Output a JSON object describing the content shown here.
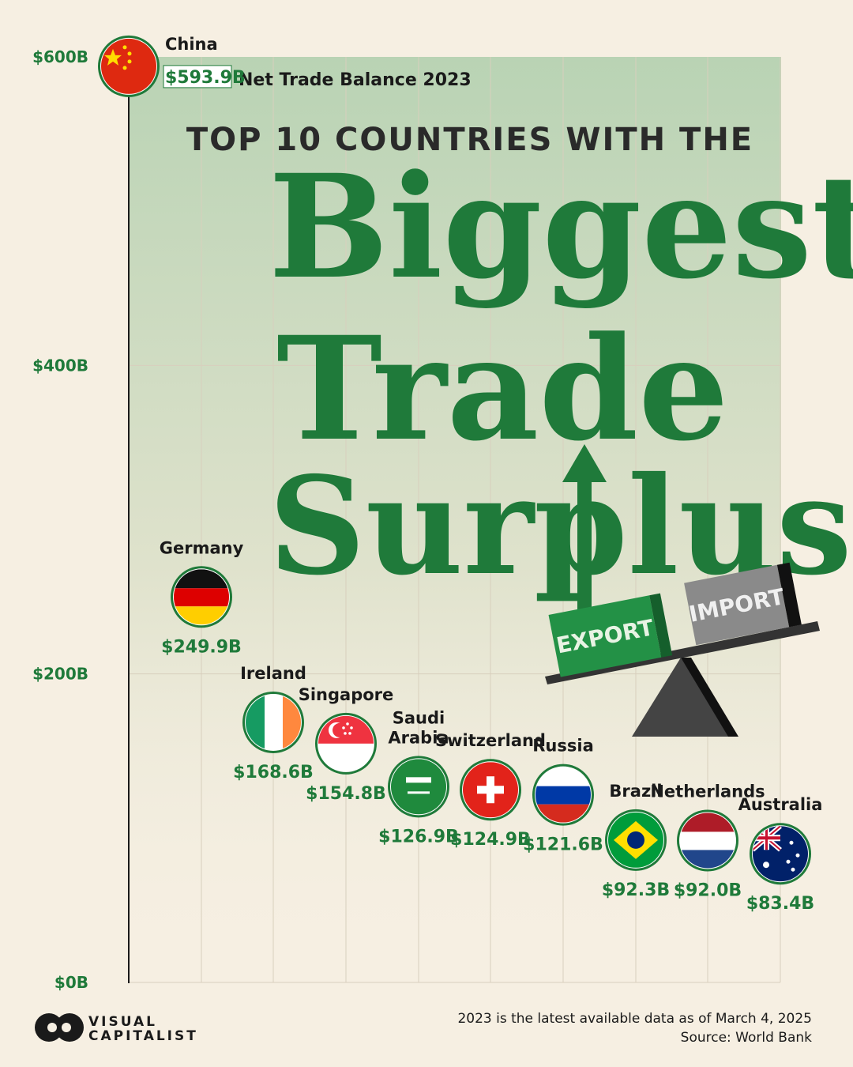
{
  "chart_data": {
    "type": "scatter",
    "title_lead": "TOP 10 COUNTRIES WITH THE",
    "title_lines": [
      "Biggest",
      "Trade",
      "Surplus"
    ],
    "metric_label": "Net Trade Balance 2023",
    "y_ticks": [
      "$0B",
      "$200B",
      "$400B",
      "$600B"
    ],
    "ylim": [
      0,
      600
    ],
    "categories": [
      "China",
      "Germany",
      "Ireland",
      "Singapore",
      "Saudi Arabia",
      "Switzerland",
      "Russia",
      "Brazil",
      "Netherlands",
      "Australia"
    ],
    "values": [
      593.9,
      249.9,
      168.6,
      154.8,
      126.9,
      124.9,
      121.6,
      92.3,
      92.0,
      83.4
    ],
    "value_labels": [
      "$593.9B",
      "$249.9B",
      "$168.6B",
      "$154.8B",
      "$126.9B",
      "$124.9B",
      "$121.6B",
      "$92.3B",
      "$92.0B",
      "$83.4B"
    ],
    "grid": true
  },
  "scale": {
    "export_label": "EXPORT",
    "import_label": "IMPORT"
  },
  "footer": {
    "note": "2023 is the latest available data as of March 4, 2025",
    "source": "Source: World Bank"
  },
  "brand": {
    "line1": "VISUAL",
    "line2": "CAPITALIST"
  },
  "colors": {
    "accent": "#1f7a3a",
    "background": "#f6efe2",
    "panel_top": "#b9d3b4"
  }
}
